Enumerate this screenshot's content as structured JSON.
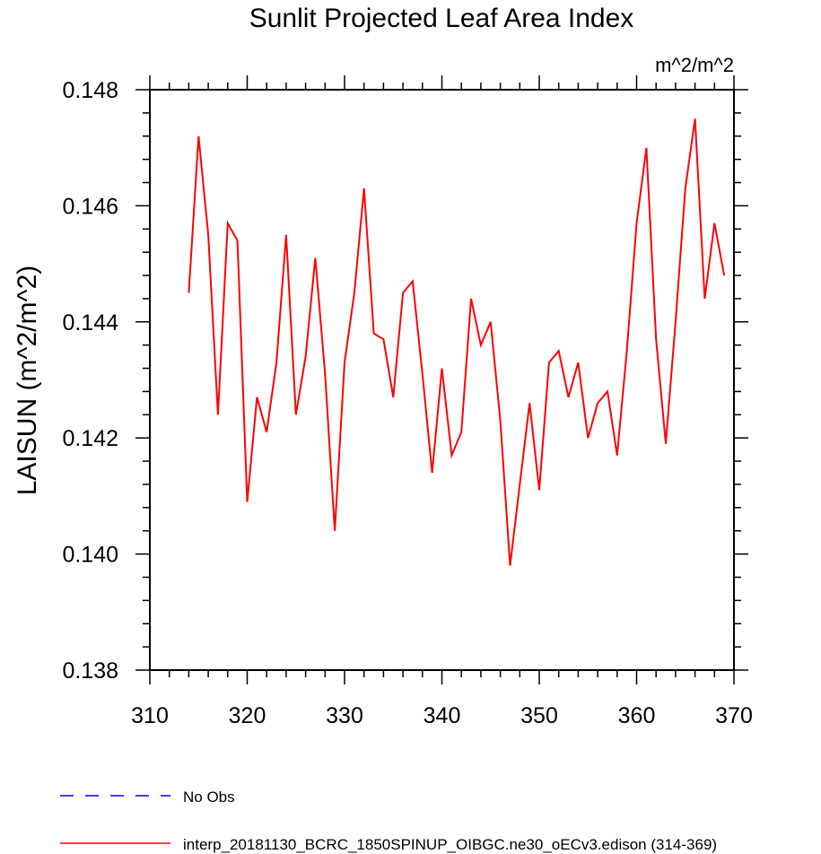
{
  "chart_data": {
    "type": "line",
    "title": "Sunlit Projected Leaf Area Index",
    "units": "m^2/m^2",
    "ylabel": "LAISUN  (m^2/m^2)",
    "xlabel": "",
    "xlim": [
      310,
      370
    ],
    "ylim": [
      0.138,
      0.148
    ],
    "x_ticks": [
      "310",
      "320",
      "330",
      "340",
      "350",
      "360",
      "370"
    ],
    "y_ticks": [
      "0.138",
      "0.140",
      "0.142",
      "0.144",
      "0.146",
      "0.148"
    ],
    "series": [
      {
        "name": "interp_20181130_BCRC_1850SPINUP_OIBGC.ne30_oECv3.edison (314-369)",
        "color": "#ff0000",
        "x": [
          314,
          315,
          316,
          317,
          318,
          319,
          320,
          321,
          322,
          323,
          324,
          325,
          326,
          327,
          328,
          329,
          330,
          331,
          332,
          333,
          334,
          335,
          336,
          337,
          338,
          339,
          340,
          341,
          342,
          343,
          344,
          345,
          346,
          347,
          348,
          349,
          350,
          351,
          352,
          353,
          354,
          355,
          356,
          357,
          358,
          359,
          360,
          361,
          362,
          363,
          364,
          365,
          366,
          367,
          368,
          369
        ],
        "y": [
          0.1445,
          0.1472,
          0.1455,
          0.1424,
          0.1457,
          0.1454,
          0.1409,
          0.1427,
          0.1421,
          0.1433,
          0.1455,
          0.1424,
          0.1434,
          0.1451,
          0.1431,
          0.1404,
          0.1433,
          0.1445,
          0.1463,
          0.1438,
          0.1437,
          0.1427,
          0.1445,
          0.1447,
          0.1431,
          0.1414,
          0.1432,
          0.1417,
          0.1421,
          0.1444,
          0.1436,
          0.144,
          0.1423,
          0.1398,
          0.1412,
          0.1426,
          0.1411,
          0.1433,
          0.1435,
          0.1427,
          0.1433,
          0.142,
          0.1426,
          0.1428,
          0.1417,
          0.1435,
          0.1457,
          0.147,
          0.1437,
          0.1419,
          0.144,
          0.1463,
          0.1475,
          0.1444,
          0.1457,
          0.1448
        ]
      }
    ],
    "legend": [
      {
        "label": "No Obs",
        "color": "#0000ff",
        "style": "dashed"
      },
      {
        "label": "interp_20181130_BCRC_1850SPINUP_OIBGC.ne30_oECv3.edison (314-369)",
        "color": "#ff0000",
        "style": "solid"
      }
    ]
  }
}
